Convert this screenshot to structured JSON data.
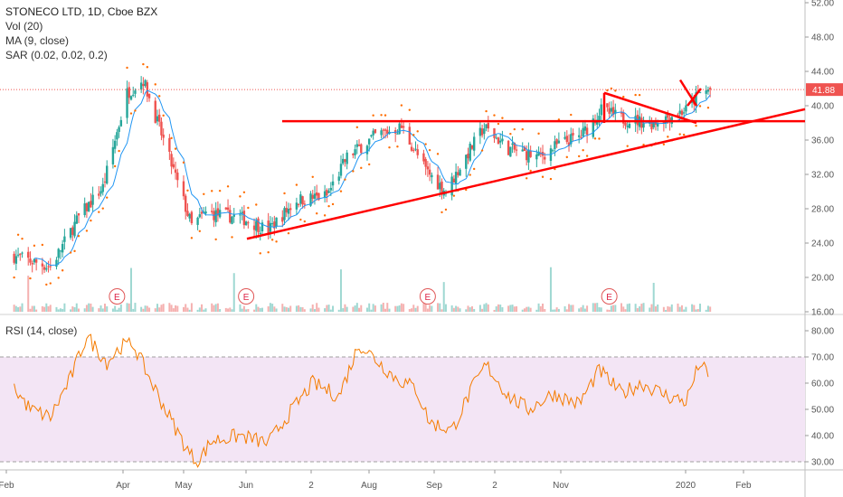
{
  "header": {
    "symbol_line": "STONECO LTD, 1D, Cboe BZX",
    "vol_label": "Vol (20)",
    "ma_label": "MA (9, close)",
    "sar_label": "SAR (0.02, 0.02, 0.2)"
  },
  "rsi_label": "RSI (14, close)",
  "chart_data": [
    {
      "type": "candlestick",
      "title": "STONECO LTD, 1D, Cboe BZX",
      "price_axis": {
        "ticks": [
          "52.00",
          "48.00",
          "44.00",
          "40.00",
          "36.00",
          "32.00",
          "28.00",
          "24.00",
          "20.00",
          "16.00"
        ],
        "ylim": [
          16,
          52
        ]
      },
      "last_price": "41.88",
      "time_axis": [
        "Feb",
        "Apr",
        "May",
        "Jun",
        "2",
        "Aug",
        "Sep",
        "2",
        "Nov",
        "2020",
        "Feb"
      ],
      "close_series": [
        {
          "date": "2019-01-28",
          "close": 22.5
        },
        {
          "date": "2019-02-15",
          "close": 21.2
        },
        {
          "date": "2019-03-01",
          "close": 27.0
        },
        {
          "date": "2019-03-13",
          "close": 30.5
        },
        {
          "date": "2019-03-25",
          "close": 41.5
        },
        {
          "date": "2019-04-02",
          "close": 43.0
        },
        {
          "date": "2019-04-12",
          "close": 36.0
        },
        {
          "date": "2019-04-26",
          "close": 26.0
        },
        {
          "date": "2019-05-03",
          "close": 27.5
        },
        {
          "date": "2019-05-20",
          "close": 27.0
        },
        {
          "date": "2019-06-03",
          "close": 25.5
        },
        {
          "date": "2019-06-17",
          "close": 29.0
        },
        {
          "date": "2019-07-02",
          "close": 29.5
        },
        {
          "date": "2019-07-12",
          "close": 34.0
        },
        {
          "date": "2019-07-26",
          "close": 36.5
        },
        {
          "date": "2019-08-08",
          "close": 37.5
        },
        {
          "date": "2019-08-20",
          "close": 32.5
        },
        {
          "date": "2019-08-30",
          "close": 30.0
        },
        {
          "date": "2019-09-10",
          "close": 34.5
        },
        {
          "date": "2019-09-18",
          "close": 37.5
        },
        {
          "date": "2019-09-30",
          "close": 35.0
        },
        {
          "date": "2019-10-15",
          "close": 34.0
        },
        {
          "date": "2019-10-25",
          "close": 35.5
        },
        {
          "date": "2019-11-05",
          "close": 36.5
        },
        {
          "date": "2019-11-15",
          "close": 39.5
        },
        {
          "date": "2019-11-25",
          "close": 38.5
        },
        {
          "date": "2019-12-10",
          "close": 38.0
        },
        {
          "date": "2019-12-27",
          "close": 39.5
        },
        {
          "date": "2020-01-03",
          "close": 41.5
        },
        {
          "date": "2020-01-08",
          "close": 41.88
        }
      ],
      "earnings_marker": "E",
      "earnings_dates": [
        "2019-03-20",
        "2019-05-23",
        "2019-08-21",
        "2019-11-19"
      ],
      "overlays": [
        "Volume",
        "MA 9",
        "Parabolic SAR",
        "trend lines"
      ]
    },
    {
      "type": "line",
      "title": "RSI (14, close)",
      "y_axis": {
        "ticks": [
          "80.00",
          "70.00",
          "60.00",
          "50.00",
          "40.00",
          "30.00"
        ],
        "ylim": [
          27,
          87
        ]
      },
      "band": [
        30,
        70
      ],
      "series": [
        {
          "values": [
            {
              "date": "2019-01-28",
              "rsi": 58
            },
            {
              "date": "2019-02-05",
              "rsi": 50
            },
            {
              "date": "2019-02-15",
              "rsi": 47
            },
            {
              "date": "2019-02-25",
              "rsi": 62
            },
            {
              "date": "2019-03-05",
              "rsi": 78
            },
            {
              "date": "2019-03-15",
              "rsi": 68
            },
            {
              "date": "2019-03-22",
              "rsi": 74
            },
            {
              "date": "2019-03-28",
              "rsi": 75
            },
            {
              "date": "2019-04-05",
              "rsi": 62
            },
            {
              "date": "2019-04-15",
              "rsi": 47
            },
            {
              "date": "2019-04-25",
              "rsi": 33
            },
            {
              "date": "2019-04-29",
              "rsi": 30
            },
            {
              "date": "2019-05-06",
              "rsi": 38
            },
            {
              "date": "2019-05-20",
              "rsi": 40
            },
            {
              "date": "2019-06-03",
              "rsi": 37
            },
            {
              "date": "2019-06-10",
              "rsi": 45
            },
            {
              "date": "2019-06-25",
              "rsi": 60
            },
            {
              "date": "2019-07-08",
              "rsi": 55
            },
            {
              "date": "2019-07-18",
              "rsi": 75
            },
            {
              "date": "2019-07-25",
              "rsi": 70
            },
            {
              "date": "2019-08-05",
              "rsi": 62
            },
            {
              "date": "2019-08-15",
              "rsi": 58
            },
            {
              "date": "2019-08-22",
              "rsi": 45
            },
            {
              "date": "2019-09-02",
              "rsi": 42
            },
            {
              "date": "2019-09-12",
              "rsi": 58
            },
            {
              "date": "2019-09-19",
              "rsi": 67
            },
            {
              "date": "2019-09-30",
              "rsi": 55
            },
            {
              "date": "2019-10-10",
              "rsi": 50
            },
            {
              "date": "2019-10-22",
              "rsi": 56
            },
            {
              "date": "2019-11-04",
              "rsi": 52
            },
            {
              "date": "2019-11-14",
              "rsi": 65
            },
            {
              "date": "2019-11-25",
              "rsi": 56
            },
            {
              "date": "2019-12-05",
              "rsi": 60
            },
            {
              "date": "2019-12-18",
              "rsi": 55
            },
            {
              "date": "2019-12-27",
              "rsi": 53
            },
            {
              "date": "2020-01-03",
              "rsi": 68
            },
            {
              "date": "2020-01-08",
              "rsi": 61
            }
          ]
        }
      ]
    }
  ],
  "colors": {
    "up": "#26a69a",
    "down": "#ef5350",
    "ma": "#2196f3",
    "sar": "#ff6d00",
    "trend": "#ff0000",
    "rsi_line": "#f57c00",
    "rsi_band_fill": "#f3e5f5",
    "price_tag": "#ef5350"
  }
}
